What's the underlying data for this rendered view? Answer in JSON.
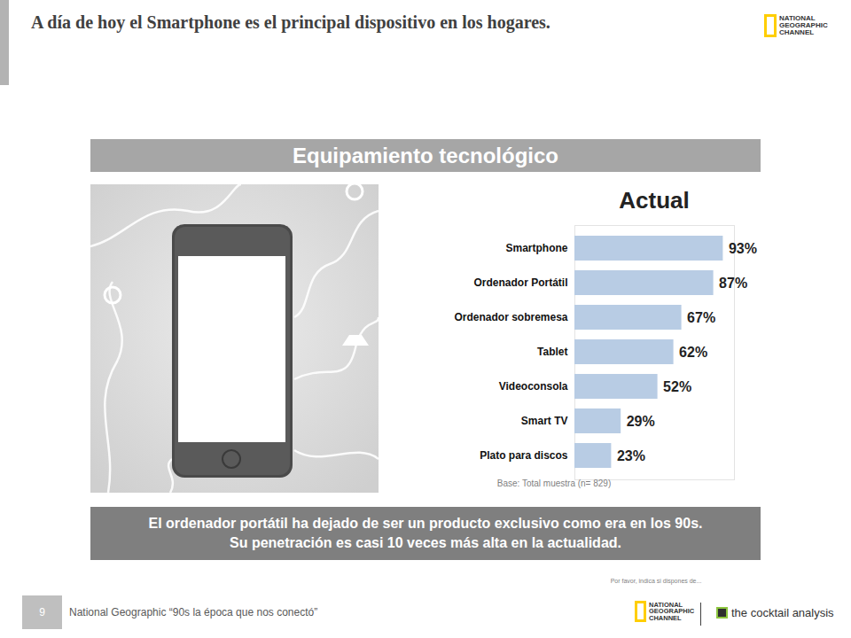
{
  "chart_data": {
    "type": "bar",
    "title": "Actual",
    "orientation": "horizontal",
    "categories": [
      "Smartphone",
      "Ordenador Portátil",
      "Ordenador sobremesa",
      "Tablet",
      "Videoconsola",
      "Smart TV",
      "Plato para discos"
    ],
    "values": [
      93,
      87,
      67,
      62,
      52,
      29,
      23
    ],
    "value_labels": [
      "93%",
      "87%",
      "67%",
      "62%",
      "52%",
      "29%",
      "23%"
    ],
    "color": "#b8cce4",
    "xlim": [
      0,
      100
    ],
    "data_labels": true,
    "tick_labels": "y"
  },
  "slide": {
    "heading": "A día de hoy el Smartphone es el principal dispositivo en los hogares.",
    "logo": [
      "NATIONAL",
      "GEOGRAPHIC",
      "CHANNEL"
    ],
    "panel_title": "Equipamiento tecnológico",
    "note": "Base: Total muestra (n= 829)",
    "caption": [
      "El ordenador portátil ha dejado de ser un producto exclusivo como era en los 90s.",
      "Su penetración es casi 10 veces más alta en la actualidad."
    ],
    "question": "Por favor, indica si dispones de...",
    "page_number": "9",
    "footer": "National Geographic “90s la época que nos conectó”",
    "brand": "the cocktail analysis"
  }
}
